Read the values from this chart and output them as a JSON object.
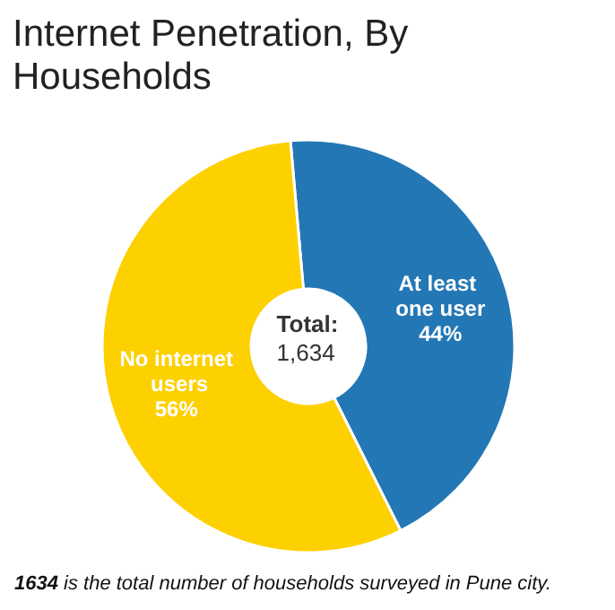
{
  "chart_data": {
    "type": "donut",
    "title": "Internet Penetration, By Households",
    "categories": [
      "At least one user",
      "No internet users"
    ],
    "values": [
      44,
      56
    ],
    "value_labels": [
      "44%",
      "56%"
    ],
    "colors": [
      "#2377b4",
      "#fdd000"
    ],
    "legend": false,
    "annotations": [
      "Total:\n1,634",
      "1634 is the total number of households surveyed in Pune city."
    ]
  }
}
